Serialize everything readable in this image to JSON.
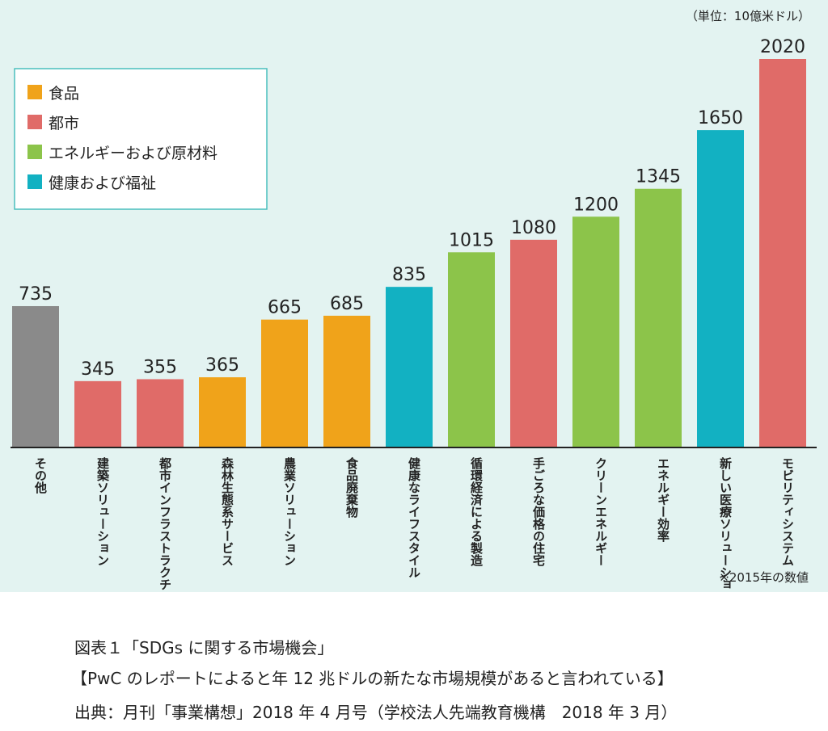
{
  "chart_data": {
    "type": "bar",
    "unit_note": "（単位：10億米ドル）",
    "footnote": "※2015年の数値",
    "ylim": [
      0,
      2020
    ],
    "grid": false,
    "legend_position": "top-left",
    "legend": [
      {
        "name": "食品",
        "color": "#f0a31a"
      },
      {
        "name": "都市",
        "color": "#e06b68"
      },
      {
        "name": "エネルギーおよび原材料",
        "color": "#8cc44a"
      },
      {
        "name": "健康および福祉",
        "color": "#12b1c2"
      }
    ],
    "categories": [
      {
        "label": "その他",
        "value": 735,
        "value_label": "735",
        "color": "#8a8a8a"
      },
      {
        "label": "建築ソリューション",
        "value": 345,
        "value_label": "345",
        "color": "#e06b68"
      },
      {
        "label": "都市インフラストラクチャー",
        "value": 355,
        "value_label": "355",
        "color": "#e06b68"
      },
      {
        "label": "森林生態系サービス",
        "value": 365,
        "value_label": "365",
        "color": "#f0a31a"
      },
      {
        "label": "農業ソリューション",
        "value": 665,
        "value_label": "665",
        "color": "#f0a31a"
      },
      {
        "label": "食品廃棄物",
        "value": 685,
        "value_label": "685",
        "color": "#f0a31a"
      },
      {
        "label": "健康なライフスタイル",
        "value": 835,
        "value_label": "835",
        "color": "#12b1c2"
      },
      {
        "label": "循環経済による製造",
        "value": 1015,
        "value_label": "1015",
        "color": "#8cc44a"
      },
      {
        "label": "手ごろな価格の住宅",
        "value": 1080,
        "value_label": "1080",
        "color": "#e06b68"
      },
      {
        "label": "クリーンエネルギー",
        "value": 1200,
        "value_label": "1200",
        "color": "#8cc44a"
      },
      {
        "label": "エネルギー効率",
        "value": 1345,
        "value_label": "1345",
        "color": "#8cc44a"
      },
      {
        "label": "新しい医療ソリューション",
        "value": 1650,
        "value_label": "1650",
        "color": "#12b1c2"
      },
      {
        "label": "モビリティシステム",
        "value": 2020,
        "value_label": "2020",
        "color": "#e06b68"
      }
    ]
  },
  "captions": {
    "line1": "図表１「SDGs に関する市場機会」",
    "line2": "【PwC のレポートによると年 12 兆ドルの新たな市場規模があると言われている】",
    "line3": "出典：月刊「事業構想」2018 年 4 月号（学校法人先端教育機構　2018 年 3 月）"
  }
}
